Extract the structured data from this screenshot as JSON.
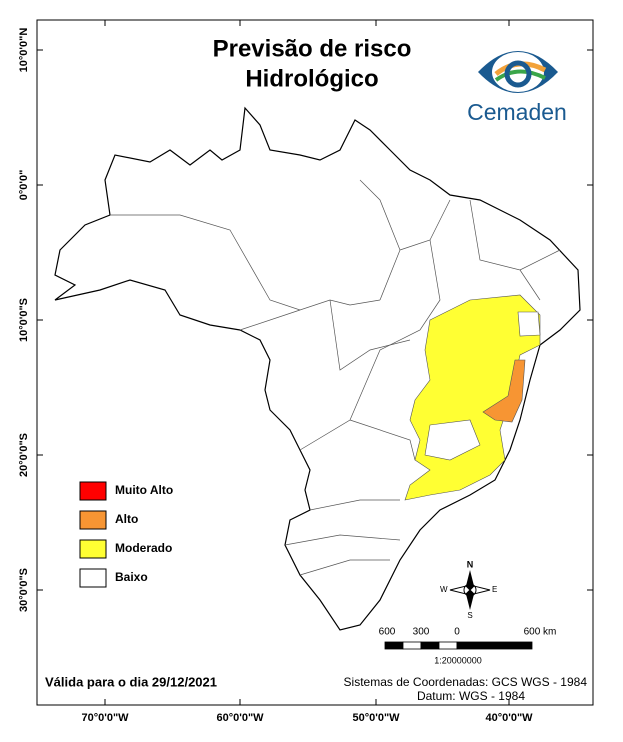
{
  "title_lines": [
    "Previsão de risco",
    "Hidrológico"
  ],
  "logo_text": "Cemaden",
  "lat_labels": [
    "10°0'0\"N",
    "0°0'0\"",
    "10°0'0\"S",
    "20°0'0\"S",
    "30°0'0\"S"
  ],
  "lon_labels": [
    "70°0'0\"W",
    "60°0'0\"W",
    "50°0'0\"W",
    "40°0'0\"W"
  ],
  "legend": [
    {
      "label": "Muito Alto",
      "color": "#ff0000"
    },
    {
      "label": "Alto",
      "color": "#f79533"
    },
    {
      "label": "Moderado",
      "color": "#ffff33"
    },
    {
      "label": "Baixo",
      "color": "#ffffff"
    }
  ],
  "compass": {
    "n": "N",
    "s": "S",
    "e": "E",
    "w": "W"
  },
  "scale_bar": {
    "labels": [
      "600",
      "300",
      "0",
      "600 km"
    ],
    "ratio": "1:20000000"
  },
  "valid_date": "Válida para o dia 29/12/2021",
  "crs_lines": [
    "Sistemas de Coordenadas: GCS WGS - 1984",
    "Datum: WGS - 1984"
  ]
}
